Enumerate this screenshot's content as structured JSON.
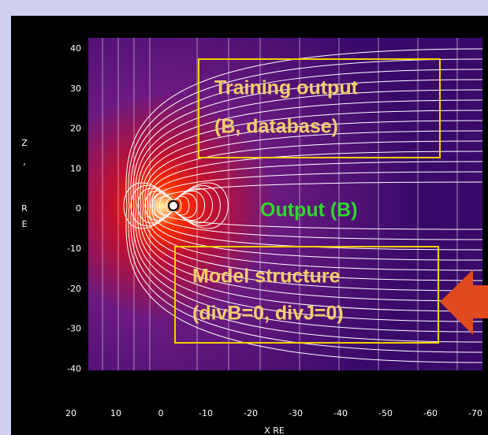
{
  "y_axis": {
    "label": [
      "Z",
      ",",
      "R",
      "E"
    ],
    "ticks": [
      "40",
      "30",
      "20",
      "10",
      "0",
      "-10",
      "-20",
      "-30",
      "-40"
    ]
  },
  "x_axis": {
    "label": "X RE",
    "ticks": [
      "20",
      "10",
      "0",
      "-10",
      "-20",
      "-30",
      "-40",
      "-50",
      "-60",
      "-70"
    ]
  },
  "annotations": {
    "training": [
      "Training output",
      "(B, database)"
    ],
    "output": "Output (B)",
    "model": [
      "Model structure",
      "(divB=0, divJ=0)"
    ]
  }
}
